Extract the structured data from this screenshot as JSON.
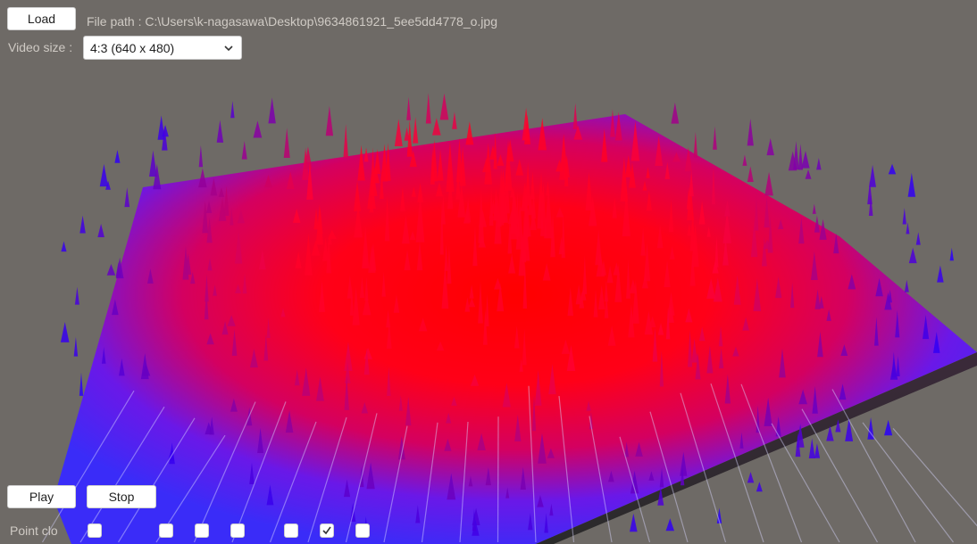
{
  "toolbar": {
    "load_label": "Load",
    "filepath_label": "File path : C:\\Users\\k-nagasawa\\Desktop\\9634861921_5ee5dd4778_o.jpg",
    "videosize_label": "Video size :",
    "videosize_value": "4:3 (640 x 480)"
  },
  "controls": {
    "play_label": "Play",
    "stop_label": "Stop",
    "pointcloud_label": "Point clo",
    "checkboxes": [
      false,
      false,
      false,
      false,
      false,
      true,
      false
    ]
  },
  "colors": {
    "background": "#6e6a66",
    "surface_low": "#3c2bff",
    "surface_high": "#ff0010"
  },
  "icons": {
    "select": "chevron-down-icon",
    "check": "check-icon"
  }
}
